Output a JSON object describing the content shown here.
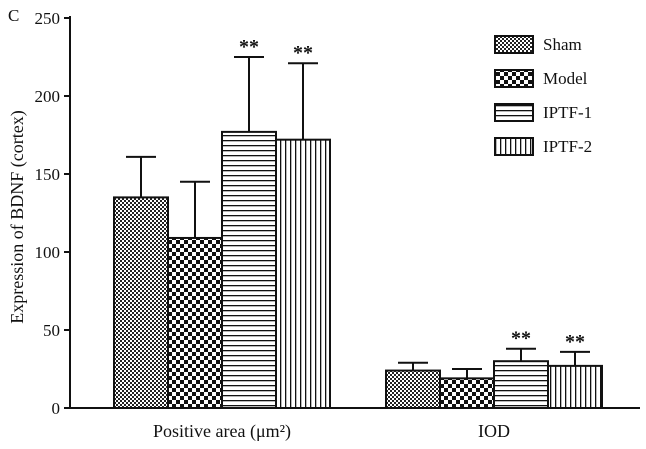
{
  "panel_label": "C",
  "chart_data": {
    "type": "bar",
    "categories": [
      "Positive area (μm²)",
      "IOD"
    ],
    "ylabel": "Expression of BDNF (cortex)",
    "xlabel": "",
    "ylim": [
      0,
      250
    ],
    "yticks": [
      0,
      50,
      100,
      150,
      200,
      250
    ],
    "error_bars": "upper",
    "legend_position": "top-right",
    "significance_marker": "**",
    "series": [
      {
        "name": "Sham",
        "pattern": "checker-fine",
        "values": [
          135,
          24
        ],
        "errors": [
          26,
          5
        ],
        "significance": [
          "",
          ""
        ]
      },
      {
        "name": "Model",
        "pattern": "checker-coarse",
        "values": [
          109,
          19
        ],
        "errors": [
          36,
          6
        ],
        "significance": [
          "",
          ""
        ]
      },
      {
        "name": "IPTF-1",
        "pattern": "horizontal-lines",
        "values": [
          177,
          30
        ],
        "errors": [
          48,
          8
        ],
        "significance": [
          "**",
          "**"
        ]
      },
      {
        "name": "IPTF-2",
        "pattern": "vertical-lines",
        "values": [
          172,
          27
        ],
        "errors": [
          49,
          9
        ],
        "significance": [
          "**",
          "**"
        ]
      }
    ]
  }
}
